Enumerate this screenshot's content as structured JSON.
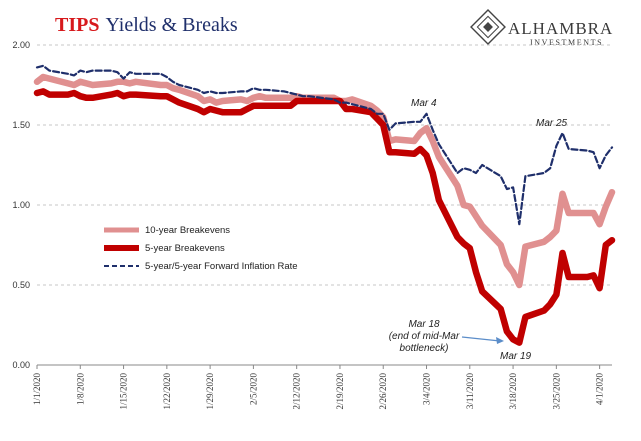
{
  "chart_data": {
    "type": "line",
    "title": "TIPS Yields & Breaks",
    "title_parts": [
      "TIPS",
      "Yields & Breaks"
    ],
    "x_tick_labels": [
      "1/1/2020",
      "1/8/2020",
      "1/15/2020",
      "1/22/2020",
      "1/29/2020",
      "2/5/2020",
      "2/12/2020",
      "2/19/2020",
      "2/26/2020",
      "3/4/2020",
      "3/11/2020",
      "3/18/2020",
      "3/25/2020",
      "4/1/2020"
    ],
    "ylim": [
      0,
      2
    ],
    "y_ticks": [
      "0.00",
      "0.50",
      "1.00",
      "1.50",
      "2.00"
    ],
    "grid": "horizontal dashed",
    "legend_position": "center-left",
    "x": [
      "2020-01-01",
      "2020-01-02",
      "2020-01-03",
      "2020-01-06",
      "2020-01-07",
      "2020-01-08",
      "2020-01-09",
      "2020-01-10",
      "2020-01-13",
      "2020-01-14",
      "2020-01-15",
      "2020-01-16",
      "2020-01-17",
      "2020-01-21",
      "2020-01-22",
      "2020-01-23",
      "2020-01-24",
      "2020-01-27",
      "2020-01-28",
      "2020-01-29",
      "2020-01-30",
      "2020-01-31",
      "2020-02-03",
      "2020-02-04",
      "2020-02-05",
      "2020-02-06",
      "2020-02-07",
      "2020-02-10",
      "2020-02-11",
      "2020-02-12",
      "2020-02-13",
      "2020-02-14",
      "2020-02-18",
      "2020-02-19",
      "2020-02-20",
      "2020-02-21",
      "2020-02-24",
      "2020-02-25",
      "2020-02-26",
      "2020-02-27",
      "2020-02-28",
      "2020-03-02",
      "2020-03-03",
      "2020-03-04",
      "2020-03-05",
      "2020-03-06",
      "2020-03-09",
      "2020-03-10",
      "2020-03-11",
      "2020-03-12",
      "2020-03-13",
      "2020-03-16",
      "2020-03-17",
      "2020-03-18",
      "2020-03-19",
      "2020-03-20",
      "2020-03-23",
      "2020-03-24",
      "2020-03-25",
      "2020-03-26",
      "2020-03-27",
      "2020-03-30",
      "2020-03-31",
      "2020-04-01",
      "2020-04-02",
      "2020-04-03"
    ],
    "series": [
      {
        "name": "10-year Breakevens",
        "color": "#e09090",
        "style": "solid-thick",
        "values": [
          1.77,
          1.8,
          1.79,
          1.76,
          1.75,
          1.77,
          1.76,
          1.75,
          1.76,
          1.77,
          1.77,
          1.76,
          1.77,
          1.75,
          1.75,
          1.73,
          1.72,
          1.68,
          1.65,
          1.66,
          1.64,
          1.65,
          1.66,
          1.65,
          1.67,
          1.68,
          1.67,
          1.67,
          1.67,
          1.68,
          1.67,
          1.67,
          1.67,
          1.65,
          1.65,
          1.66,
          1.62,
          1.59,
          1.55,
          1.4,
          1.41,
          1.4,
          1.45,
          1.48,
          1.4,
          1.3,
          1.12,
          1.0,
          0.99,
          0.93,
          0.87,
          0.75,
          0.63,
          0.58,
          0.5,
          0.74,
          0.77,
          0.8,
          0.84,
          1.07,
          0.95,
          0.95,
          0.95,
          0.88,
          0.99,
          1.08
        ]
      },
      {
        "name": "5-year Breakevens",
        "color": "#c00000",
        "style": "solid-thicker",
        "values": [
          1.7,
          1.71,
          1.69,
          1.69,
          1.7,
          1.68,
          1.67,
          1.67,
          1.69,
          1.7,
          1.68,
          1.69,
          1.69,
          1.68,
          1.68,
          1.66,
          1.64,
          1.6,
          1.58,
          1.6,
          1.59,
          1.58,
          1.58,
          1.6,
          1.62,
          1.62,
          1.62,
          1.62,
          1.62,
          1.65,
          1.65,
          1.65,
          1.65,
          1.65,
          1.6,
          1.6,
          1.58,
          1.54,
          1.5,
          1.33,
          1.33,
          1.32,
          1.35,
          1.31,
          1.2,
          1.03,
          0.8,
          0.76,
          0.73,
          0.58,
          0.46,
          0.35,
          0.21,
          0.16,
          0.14,
          0.3,
          0.34,
          0.38,
          0.44,
          0.7,
          0.55,
          0.55,
          0.56,
          0.48,
          0.75,
          0.78
        ]
      },
      {
        "name": "5-year/5-year Forward Inflation Rate",
        "color": "#1f2f6b",
        "style": "dashed",
        "values": [
          1.86,
          1.87,
          1.84,
          1.82,
          1.81,
          1.84,
          1.83,
          1.84,
          1.84,
          1.83,
          1.79,
          1.83,
          1.82,
          1.82,
          1.8,
          1.77,
          1.75,
          1.72,
          1.7,
          1.71,
          1.7,
          1.7,
          1.71,
          1.71,
          1.73,
          1.72,
          1.72,
          1.71,
          1.7,
          1.69,
          1.68,
          1.68,
          1.66,
          1.64,
          1.64,
          1.63,
          1.6,
          1.57,
          1.57,
          1.47,
          1.51,
          1.52,
          1.52,
          1.57,
          1.47,
          1.38,
          1.2,
          1.23,
          1.22,
          1.2,
          1.25,
          1.18,
          1.1,
          1.11,
          0.88,
          1.18,
          1.2,
          1.23,
          1.37,
          1.45,
          1.35,
          1.34,
          1.33,
          1.23,
          1.31,
          1.36
        ]
      }
    ],
    "annotations": [
      "Mar 4",
      "Mar 25",
      "Mar 18\n(end of mid-Mar\nbottleneck)",
      "Mar 19"
    ]
  },
  "logo": {
    "name": "ALHAMBRA",
    "sub": "INVESTMENTS"
  }
}
